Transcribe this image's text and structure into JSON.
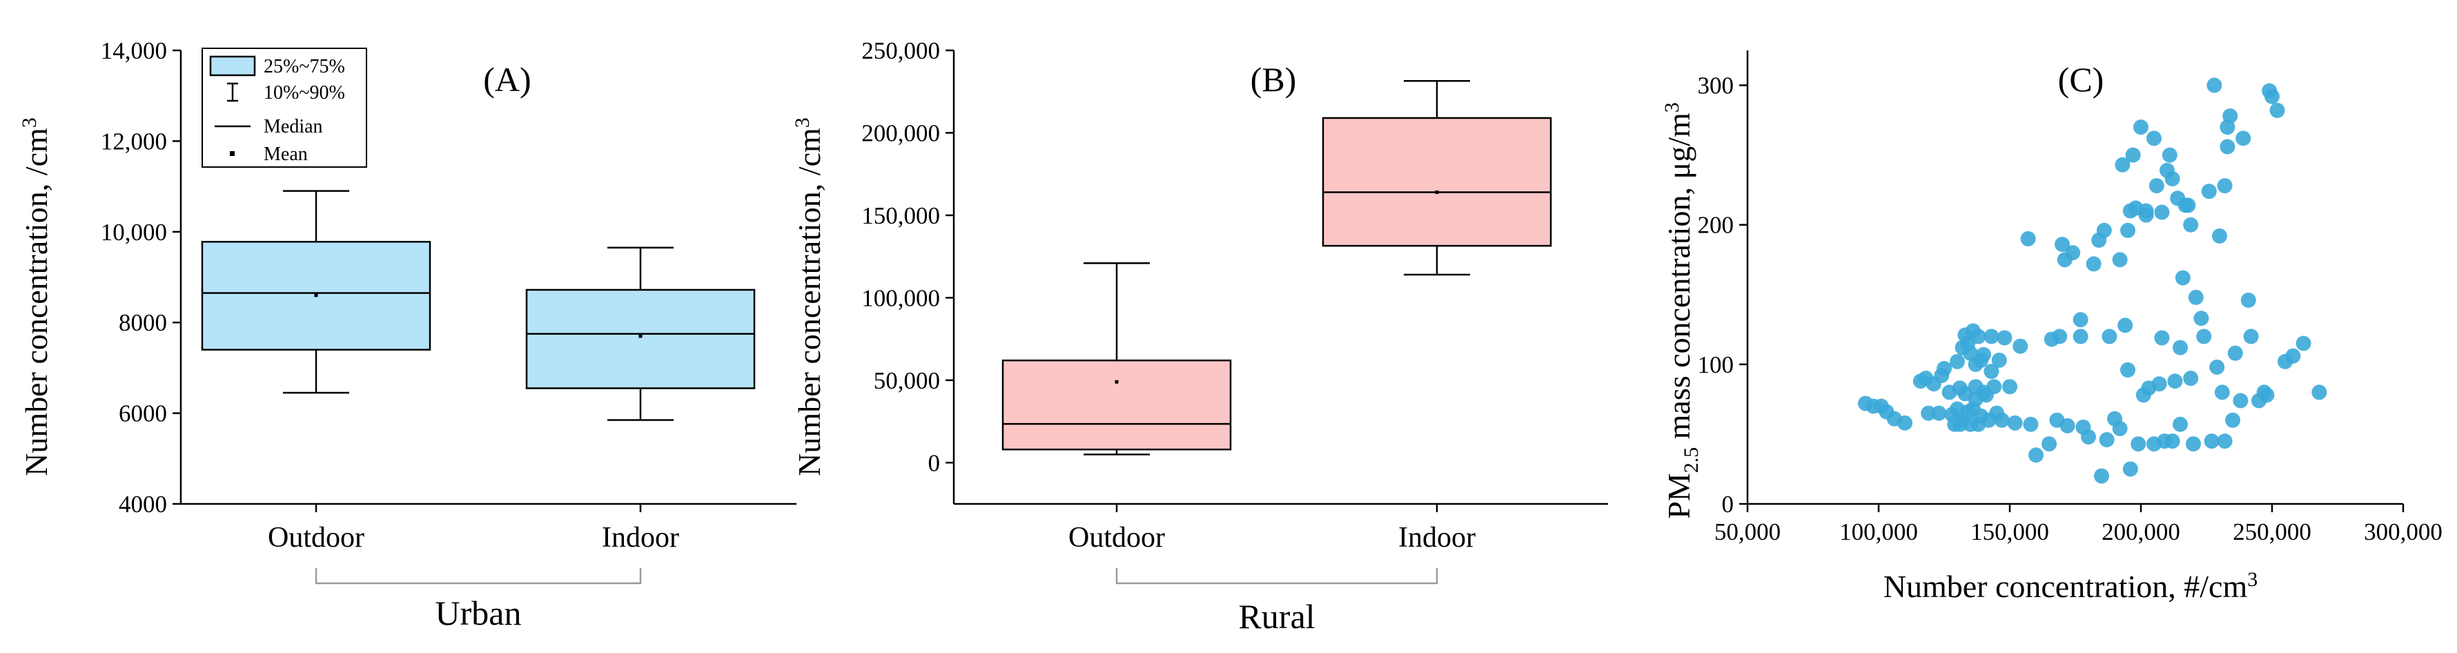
{
  "colors": {
    "urban_box": "#b5e3fa",
    "rural_box": "#fcc6c6",
    "scatter_point": "#3aa8d8"
  },
  "legend": {
    "items": [
      "25%~75%",
      "10%~90%",
      "Median",
      "Mean"
    ]
  },
  "chart_data": [
    {
      "panel": "(A)",
      "type": "box",
      "ylabel": "Number concentration, /cm",
      "ylabel_superscript": "3",
      "ylim": [
        4000,
        14000
      ],
      "yticks": [
        4000,
        6000,
        8000,
        10000,
        12000,
        14000
      ],
      "ytick_labels": [
        "4000",
        "6000",
        "8000",
        "10,000",
        "12,000",
        "14,000"
      ],
      "categories": [
        "Outdoor",
        "Indoor"
      ],
      "group_label": "Urban",
      "boxes": [
        {
          "category": "Outdoor",
          "p10": 6450,
          "p25": 7400,
          "median": 8650,
          "mean": 8600,
          "p75": 9780,
          "p90": 10900
        },
        {
          "category": "Indoor",
          "p10": 5850,
          "p25": 6550,
          "median": 7750,
          "mean": 7700,
          "p75": 8720,
          "p90": 9650
        }
      ]
    },
    {
      "panel": "(B)",
      "type": "box",
      "ylabel": "Number concentration, /cm",
      "ylabel_superscript": "3",
      "ylim": [
        -25000,
        250000
      ],
      "yticks": [
        0,
        50000,
        100000,
        150000,
        200000,
        250000
      ],
      "ytick_labels": [
        "0",
        "50,000",
        "100,000",
        "150,000",
        "200,000",
        "250,000"
      ],
      "categories": [
        "Outdoor",
        "Indoor"
      ],
      "group_label": "Rural",
      "boxes": [
        {
          "category": "Outdoor",
          "p10": 5000,
          "p25": 8000,
          "median": 23500,
          "mean": 49000,
          "p75": 62000,
          "p90": 121000
        },
        {
          "category": "Indoor",
          "p10": 114000,
          "p25": 131500,
          "median": 164000,
          "mean": 164000,
          "p75": 209000,
          "p90": 231500
        }
      ]
    },
    {
      "panel": "(C)",
      "type": "scatter",
      "xlabel": "Number concentration, #/cm",
      "xlabel_superscript": "3",
      "ylabel_parts": [
        "PM",
        "2.5",
        " mass concentration, μg/m",
        "3"
      ],
      "xlim": [
        50000,
        300000
      ],
      "ylim": [
        0,
        325
      ],
      "xticks": [
        50000,
        100000,
        150000,
        200000,
        250000,
        300000
      ],
      "xtick_labels": [
        "50,000",
        "100,000",
        "150,000",
        "200,000",
        "250,000",
        "300,000"
      ],
      "yticks": [
        0,
        100,
        200,
        300
      ],
      "ytick_labels": [
        "0",
        "100",
        "200",
        "300"
      ],
      "x": [
        95000,
        98000,
        101000,
        103000,
        106000,
        110000,
        116000,
        119000,
        121000,
        124000,
        125000,
        127000,
        128000,
        129000,
        130000,
        130000,
        131000,
        131000,
        132000,
        132000,
        133000,
        133000,
        134000,
        134000,
        135000,
        135000,
        136000,
        136000,
        137000,
        137000,
        138000,
        138000,
        139000,
        139000,
        140000,
        140000,
        141000,
        142000,
        143000,
        144000,
        145000,
        147000,
        148000,
        150000,
        152000,
        154000,
        157000,
        158000,
        165000,
        166000,
        168000,
        169000,
        170000,
        171000,
        172000,
        174000,
        177000,
        177000,
        178000,
        180000,
        182000,
        184000,
        186000,
        187000,
        188000,
        190000,
        192000,
        192000,
        193000,
        194000,
        195000,
        195000,
        196000,
        197000,
        198000,
        199000,
        200000,
        201000,
        202000,
        202000,
        203000,
        205000,
        205000,
        206000,
        207000,
        208000,
        208000,
        209000,
        210000,
        211000,
        212000,
        212000,
        213000,
        214000,
        215000,
        216000,
        217000,
        218000,
        219000,
        219000,
        220000,
        221000,
        223000,
        224000,
        226000,
        227000,
        228000,
        229000,
        230000,
        231000,
        232000,
        233000,
        233000,
        234000,
        235000,
        236000,
        238000,
        239000,
        241000,
        242000,
        245000,
        247000,
        248000,
        249000,
        250000,
        252000,
        255000,
        258000,
        262000,
        268000,
        215000,
        160000,
        185000,
        196000,
        232000,
        146000,
        143000,
        137000,
        123000,
        118000
      ],
      "y": [
        72,
        70,
        70,
        66,
        61,
        58,
        88,
        65,
        86,
        92,
        97,
        80,
        64,
        57,
        102,
        68,
        57,
        83,
        112,
        60,
        79,
        121,
        115,
        66,
        108,
        57,
        124,
        68,
        100,
        84,
        120,
        57,
        103,
        63,
        107,
        80,
        78,
        60,
        120,
        84,
        65,
        60,
        119,
        84,
        58,
        113,
        190,
        57,
        43,
        118,
        60,
        120,
        186,
        175,
        56,
        180,
        132,
        120,
        55,
        48,
        172,
        189,
        196,
        46,
        120,
        61,
        54,
        175,
        243,
        128,
        96,
        196,
        210,
        250,
        212,
        43,
        270,
        78,
        210,
        207,
        83,
        262,
        43,
        228,
        86,
        119,
        209,
        45,
        239,
        250,
        45,
        233,
        88,
        219,
        57,
        162,
        214,
        214,
        200,
        90,
        43,
        148,
        133,
        120,
        224,
        45,
        300,
        98,
        192,
        80,
        228,
        270,
        256,
        278,
        60,
        108,
        74,
        262,
        146,
        120,
        74,
        80,
        78,
        296,
        292,
        282,
        102,
        106,
        115,
        80,
        112,
        35,
        20,
        25,
        45,
        103,
        95,
        75,
        65,
        90
      ]
    }
  ]
}
